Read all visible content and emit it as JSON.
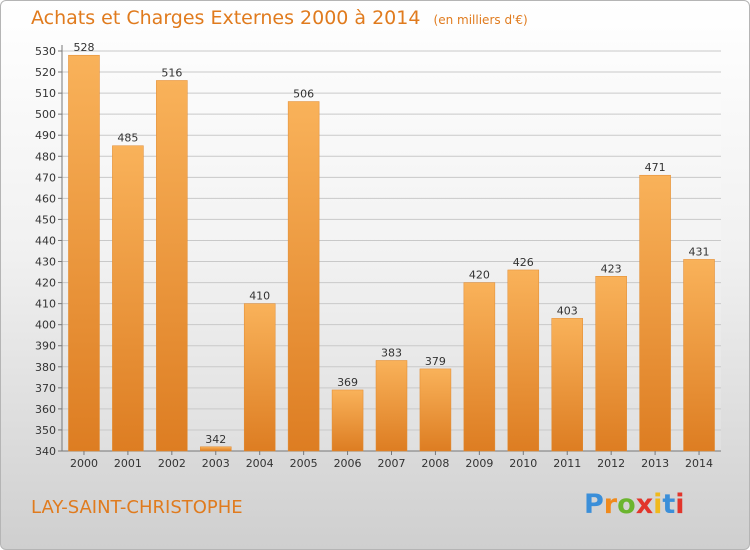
{
  "title": "Achats et Charges Externes 2000 à 2014",
  "unit": "(en milliers d'€)",
  "commune": "LAY-SAINT-CHRISTOPHE",
  "brand": {
    "letters": [
      "P",
      "r",
      "o",
      "x",
      "i",
      "t",
      "i"
    ],
    "colors": [
      "#3b8fd9",
      "#f08a1c",
      "#6bb52e",
      "#e2352b",
      "#f0b91c",
      "#3b8fd9",
      "#e2352b"
    ]
  },
  "colors": {
    "bar_light": "#f9b25a",
    "bar_dark": "#dd7d22",
    "accent": "#e07b1e"
  },
  "chart_data": {
    "type": "bar",
    "categories": [
      "2000",
      "2001",
      "2002",
      "2003",
      "2004",
      "2005",
      "2006",
      "2007",
      "2008",
      "2009",
      "2010",
      "2011",
      "2012",
      "2013",
      "2014"
    ],
    "values": [
      528,
      485,
      516,
      342,
      410,
      506,
      369,
      383,
      379,
      420,
      426,
      403,
      423,
      471,
      431
    ],
    "ylim": [
      340,
      530
    ],
    "yticks": [
      340,
      350,
      360,
      370,
      380,
      390,
      400,
      410,
      420,
      430,
      440,
      450,
      460,
      470,
      480,
      490,
      500,
      510,
      520,
      530
    ],
    "grid": true
  }
}
